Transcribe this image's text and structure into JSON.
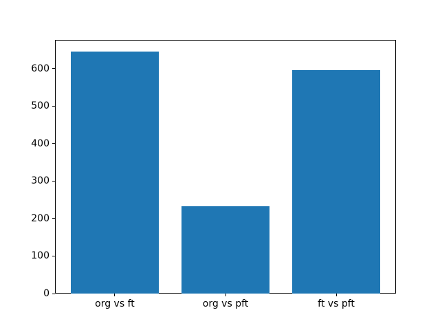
{
  "chart_data": {
    "type": "bar",
    "title": "",
    "xlabel": "",
    "ylabel": "",
    "categories": [
      "org vs ft",
      "org vs pft",
      "ft vs pft"
    ],
    "values": [
      645,
      233,
      596
    ],
    "yticks": [
      0,
      100,
      200,
      300,
      400,
      500,
      600
    ],
    "ylim": [
      0,
      677
    ],
    "xlim": [
      -0.54,
      2.54
    ],
    "bar_width": 0.8,
    "bar_color": "#1f77b4",
    "axis_color": "#000000",
    "text_color": "#000000",
    "background": "#ffffff",
    "grid": false,
    "legend": null
  }
}
